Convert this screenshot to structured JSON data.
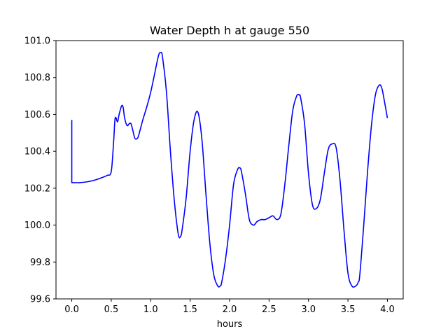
{
  "chart_data": {
    "type": "line",
    "title": "Water Depth h at gauge 550",
    "xlabel": "hours",
    "ylabel": "",
    "xlim": [
      -0.2,
      4.2
    ],
    "ylim": [
      99.6,
      101.0
    ],
    "grid": false,
    "xticks": [
      "0.0",
      "0.5",
      "1.0",
      "1.5",
      "2.0",
      "2.5",
      "3.0",
      "3.5",
      "4.0"
    ],
    "yticks": [
      "99.6",
      "99.8",
      "100.0",
      "100.2",
      "100.4",
      "100.6",
      "100.8",
      "101.0"
    ],
    "series": [
      {
        "color": "#0000ff",
        "x": [
          0.0,
          0.0,
          0.05,
          0.1,
          0.2,
          0.3,
          0.4,
          0.45,
          0.5,
          0.53,
          0.55,
          0.58,
          0.6,
          0.63,
          0.65,
          0.67,
          0.7,
          0.73,
          0.75,
          0.77,
          0.8,
          0.83,
          0.85,
          0.9,
          0.95,
          1.0,
          1.05,
          1.1,
          1.13,
          1.15,
          1.2,
          1.25,
          1.3,
          1.35,
          1.38,
          1.4,
          1.45,
          1.5,
          1.55,
          1.6,
          1.65,
          1.7,
          1.75,
          1.8,
          1.85,
          1.88,
          1.9,
          1.95,
          2.0,
          2.05,
          2.1,
          2.13,
          2.15,
          2.2,
          2.25,
          2.3,
          2.33,
          2.35,
          2.4,
          2.45,
          2.5,
          2.55,
          2.6,
          2.65,
          2.7,
          2.75,
          2.8,
          2.85,
          2.88,
          2.9,
          2.95,
          3.0,
          3.05,
          3.1,
          3.15,
          3.2,
          3.25,
          3.3,
          3.35,
          3.4,
          3.45,
          3.5,
          3.55,
          3.6,
          3.63,
          3.65,
          3.7,
          3.75,
          3.8,
          3.85,
          3.9,
          3.93,
          3.95,
          4.0
        ],
        "y": [
          100.57,
          100.23,
          100.23,
          100.23,
          100.235,
          100.245,
          100.26,
          100.27,
          100.29,
          100.45,
          100.58,
          100.56,
          100.6,
          100.645,
          100.64,
          100.58,
          100.54,
          100.55,
          100.55,
          100.52,
          100.47,
          100.47,
          100.49,
          100.57,
          100.64,
          100.72,
          100.82,
          100.92,
          100.935,
          100.91,
          100.72,
          100.4,
          100.13,
          99.95,
          99.94,
          99.98,
          100.15,
          100.4,
          100.57,
          100.61,
          100.46,
          100.17,
          99.9,
          99.73,
          99.67,
          99.67,
          99.69,
          99.82,
          100.0,
          100.22,
          100.3,
          100.31,
          100.29,
          100.17,
          100.03,
          100.0,
          100.01,
          100.02,
          100.03,
          100.03,
          100.04,
          100.05,
          100.03,
          100.06,
          100.22,
          100.43,
          100.62,
          100.7,
          100.705,
          100.69,
          100.55,
          100.28,
          100.11,
          100.09,
          100.14,
          100.28,
          100.41,
          100.44,
          100.42,
          100.24,
          99.97,
          99.74,
          99.67,
          99.67,
          99.69,
          99.73,
          100.0,
          100.3,
          100.55,
          100.71,
          100.76,
          100.74,
          100.7,
          100.58
        ]
      }
    ]
  }
}
